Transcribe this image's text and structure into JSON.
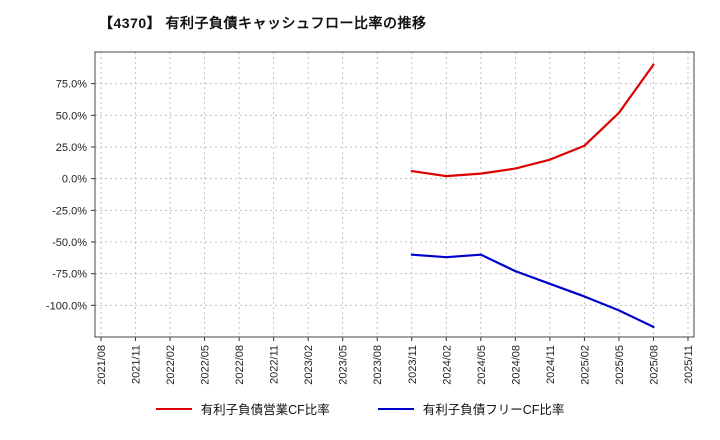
{
  "chart_data": {
    "type": "line",
    "title": "【4370】 有利子負債キャッシュフロー比率の推移",
    "x_labels": [
      "2021/08",
      "2021/11",
      "2022/02",
      "2022/05",
      "2022/08",
      "2022/11",
      "2023/02",
      "2023/05",
      "2023/08",
      "2023/11",
      "2024/02",
      "2024/05",
      "2024/08",
      "2024/11",
      "2025/02",
      "2025/05",
      "2025/08",
      "2025/11"
    ],
    "yticks": [
      75,
      50,
      25,
      0,
      -25,
      -50,
      -75,
      -100
    ],
    "ytick_labels": [
      "75.0%",
      "50.0%",
      "25.0%",
      "0.0%",
      "-25.0%",
      "-50.0%",
      "-75.0%",
      "-100.0%"
    ],
    "ylim": [
      -125,
      100
    ],
    "grid": true,
    "legend_position": "bottom",
    "series": [
      {
        "name": "有利子負債営業CF比率",
        "color": "#dd0000",
        "start_index": 9,
        "values": [
          6,
          2,
          4,
          8,
          15,
          26,
          52,
          90
        ]
      },
      {
        "name": "有利子負債フリーCF比率",
        "color": "#0000cc",
        "start_index": 9,
        "values": [
          -60,
          -62,
          -60,
          -73,
          -83,
          -93,
          -104,
          -117
        ]
      }
    ]
  }
}
